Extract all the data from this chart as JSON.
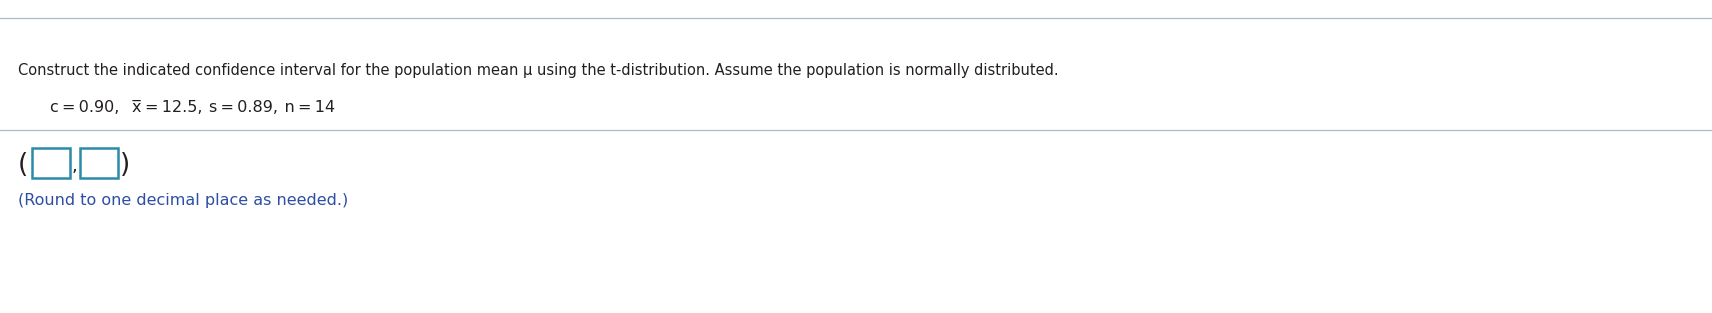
{
  "line1": "Construct the indicated confidence interval for the population mean μ using the t-distribution. Assume the population is normally distributed.",
  "answer_label": "(Round to one decimal place as needed.)",
  "text_color": "#231f20",
  "blue_color": "#2E4DA4",
  "box_edge_color": "#2B8BA8",
  "bg_color": "#ffffff",
  "line_color": "#b0b8c0",
  "font_size_line1": 10.5,
  "font_size_line2": 11.5,
  "font_size_answer": 11.5,
  "font_size_boxes": 20
}
